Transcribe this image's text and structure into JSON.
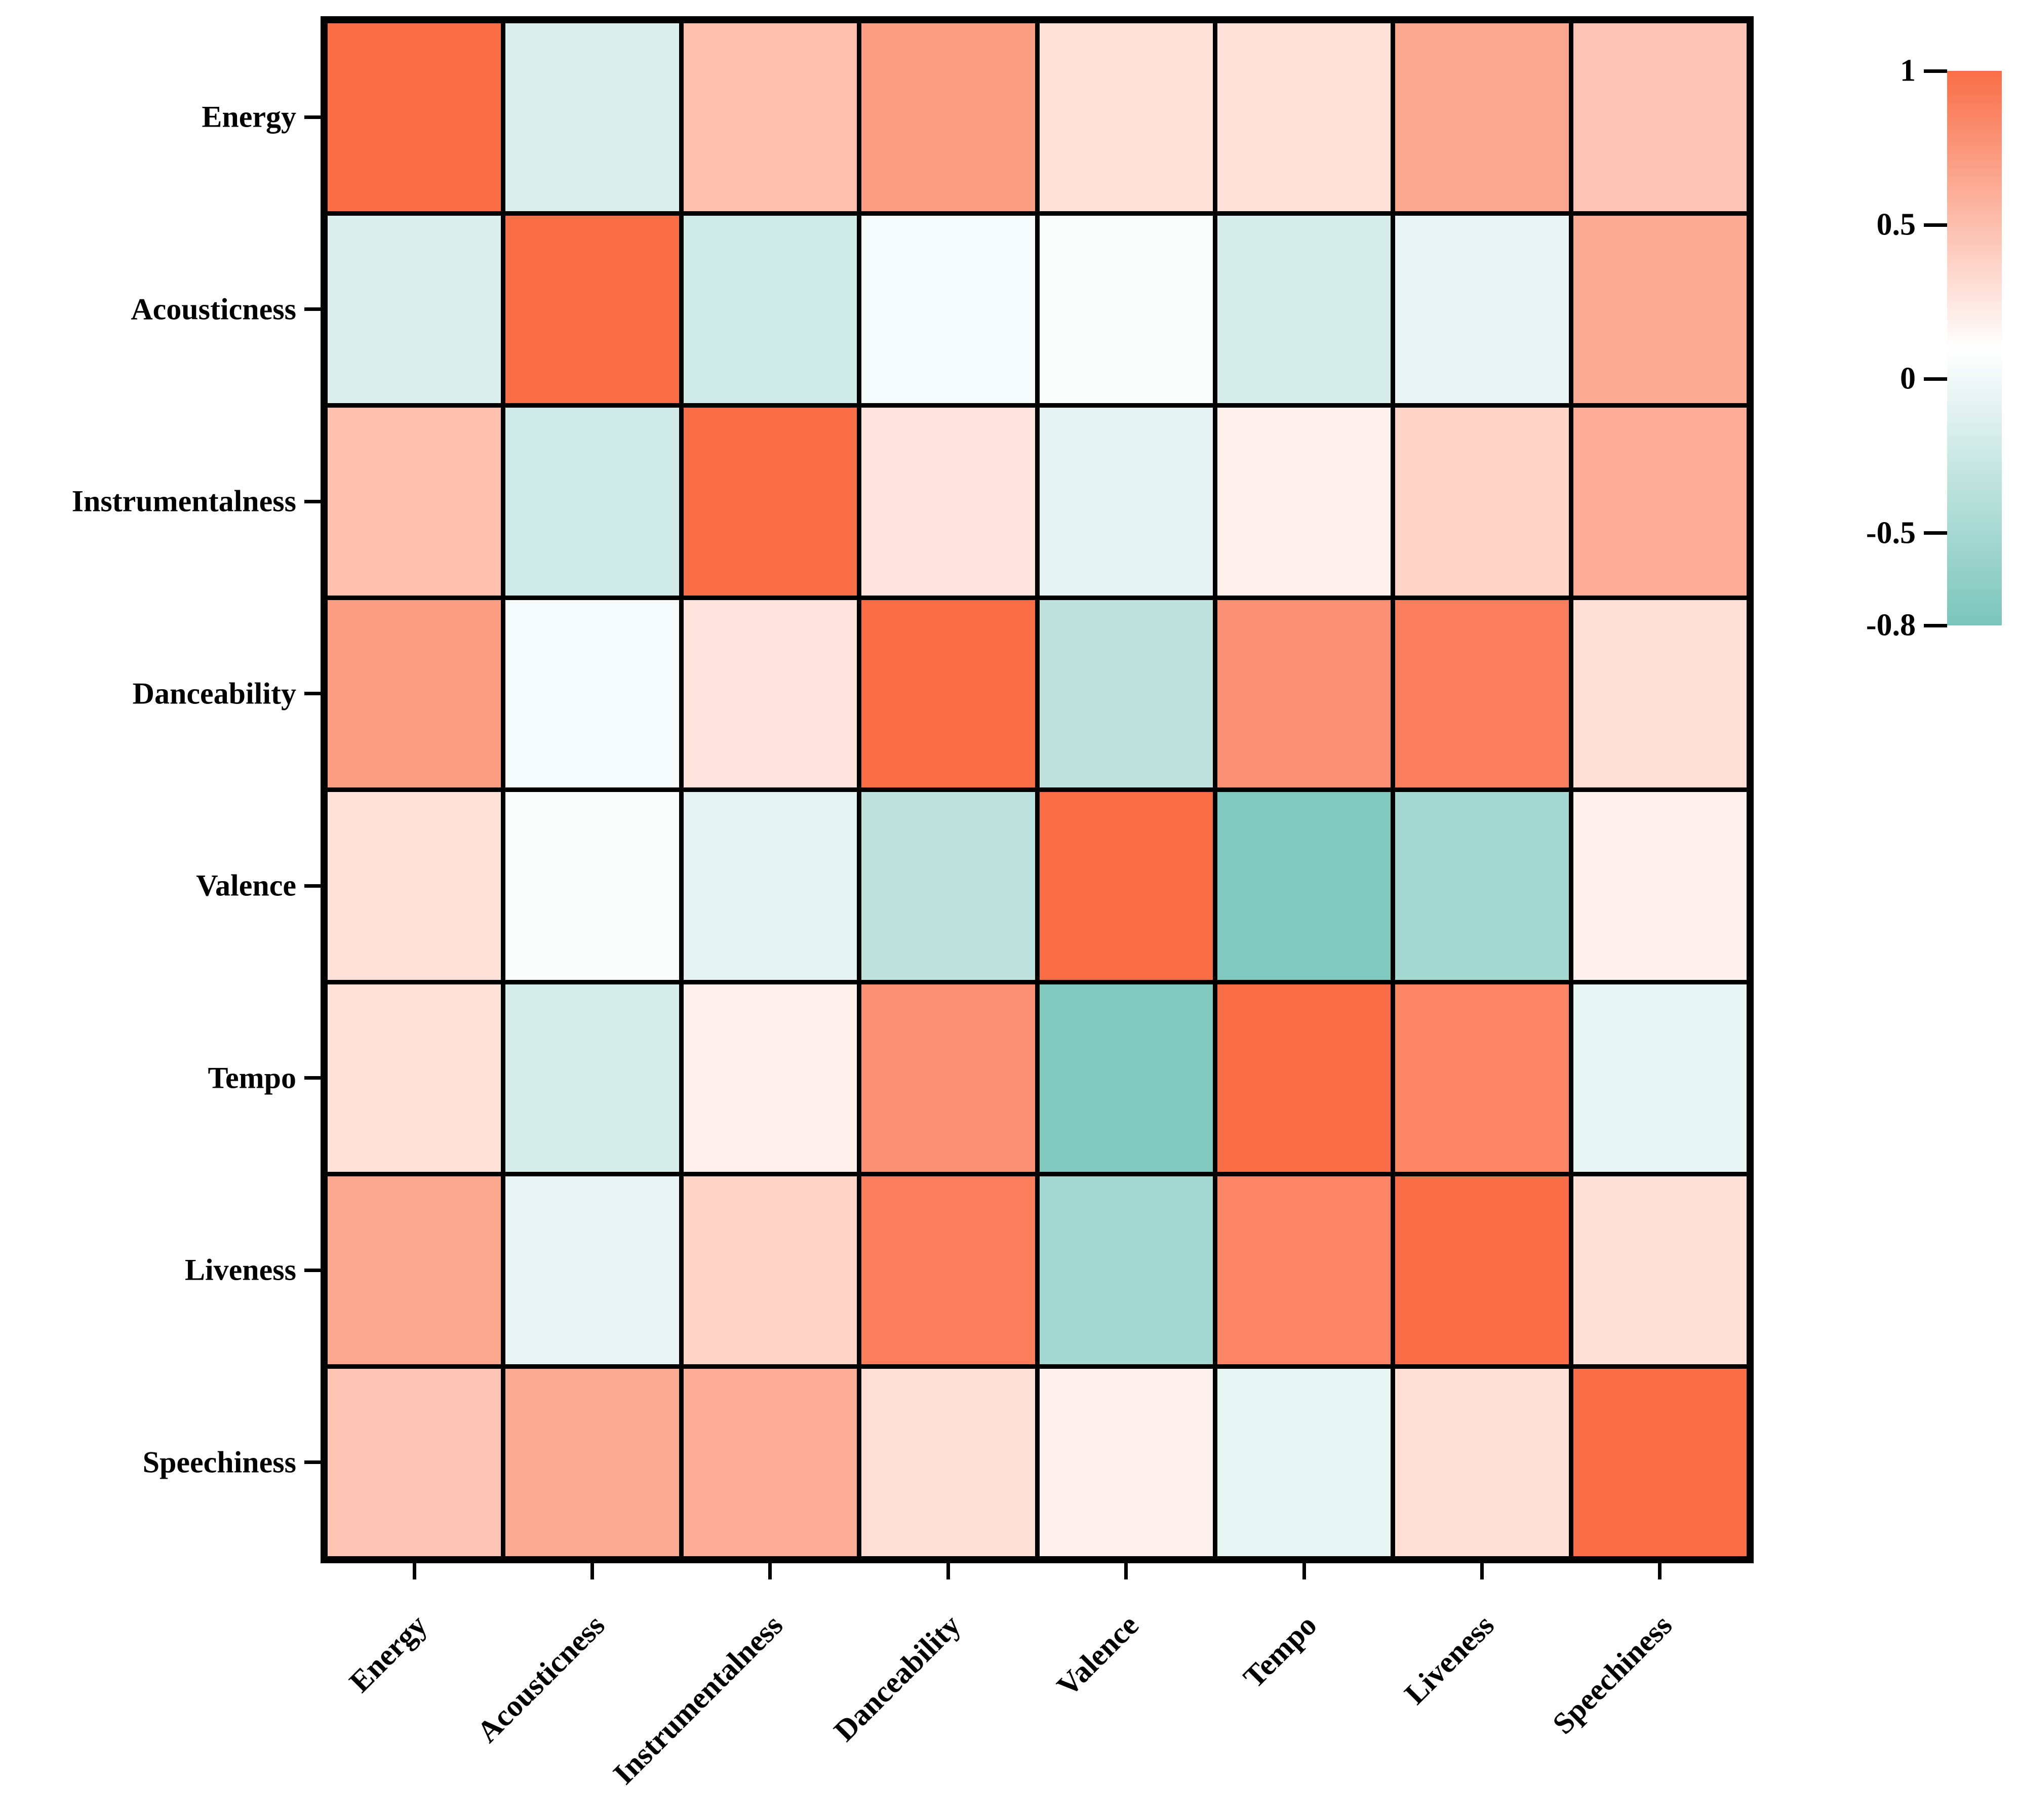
{
  "chart_data": {
    "type": "heatmap",
    "title": "",
    "categories": [
      "Energy",
      "Acousticness",
      "Instrumentalness",
      "Danceability",
      "Valence",
      "Tempo",
      "Liveness",
      "Speechiness"
    ],
    "matrix": [
      [
        1.0,
        -0.15,
        0.49,
        0.7,
        0.28,
        0.28,
        0.65,
        0.46
      ],
      [
        -0.15,
        1.0,
        -0.22,
        0.03,
        0.05,
        -0.18,
        -0.05,
        0.63
      ],
      [
        0.49,
        -0.22,
        1.0,
        0.27,
        -0.08,
        0.19,
        0.37,
        0.61
      ],
      [
        0.7,
        0.03,
        0.27,
        1.0,
        -0.34,
        0.78,
        0.9,
        0.3
      ],
      [
        0.28,
        0.05,
        -0.08,
        -0.34,
        1.0,
        -0.75,
        -0.51,
        0.19
      ],
      [
        0.28,
        -0.18,
        0.19,
        0.78,
        -0.75,
        1.0,
        0.85,
        -0.06
      ],
      [
        0.65,
        -0.05,
        0.37,
        0.9,
        -0.51,
        0.85,
        1.0,
        0.29
      ],
      [
        0.46,
        0.63,
        0.61,
        0.3,
        0.19,
        -0.06,
        0.29,
        1.0
      ]
    ],
    "colorbar": {
      "min": -0.8,
      "max": 1,
      "white_point": 0.1,
      "tick_labels": [
        "1",
        "0.5",
        "0",
        "-0.5",
        "-0.8"
      ],
      "tick_values": [
        1,
        0.5,
        0,
        -0.5,
        -0.8
      ],
      "position": "right"
    },
    "colors": {
      "positive_end": "#f96e47",
      "negative_end": "#7ac5bb",
      "grid_line": "#000000",
      "background": "#ffffff"
    },
    "legend": "none",
    "grid_on": true
  }
}
